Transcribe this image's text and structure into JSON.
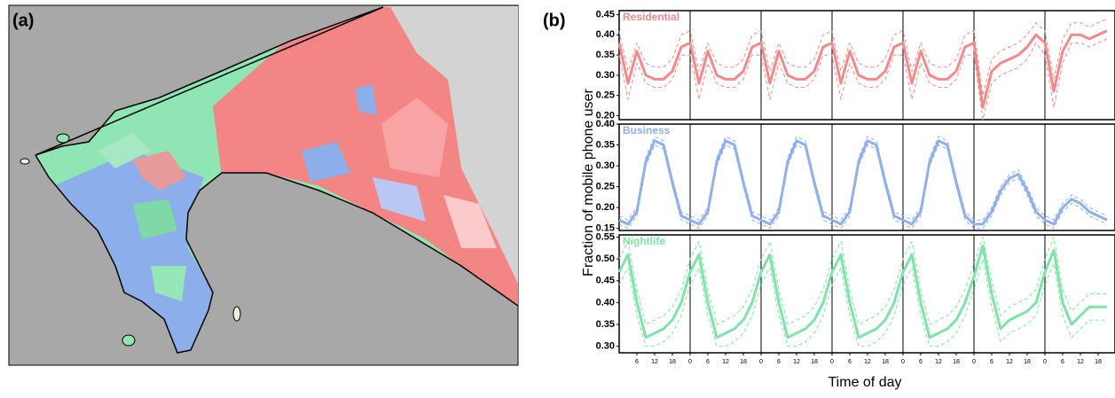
{
  "figure": {
    "panel_labels": [
      "(a)",
      "(b)"
    ],
    "ylabel": "Fraction of mobile phone user",
    "xlabel": "Time of day"
  },
  "chart_data": [
    {
      "type": "line",
      "title": "Residential",
      "xlim": [
        0,
        168
      ],
      "ylim": [
        0.19,
        0.46
      ],
      "yticks": [
        {
          "value": 0.2,
          "label": "0.20"
        },
        0.25,
        {
          "value": 0.3,
          "label": "0.30"
        },
        0.35,
        {
          "value": 0.4,
          "label": "0.40"
        },
        0.45
      ],
      "x": [
        0,
        3,
        6,
        9,
        12,
        15,
        18,
        21,
        24,
        27,
        30,
        33,
        36,
        39,
        42,
        45,
        48,
        51,
        54,
        57,
        60,
        63,
        66,
        69,
        72,
        75,
        78,
        81,
        84,
        87,
        90,
        93,
        96,
        99,
        102,
        105,
        108,
        111,
        114,
        117,
        120,
        123,
        126,
        129,
        132,
        135,
        138,
        141,
        144,
        147,
        150,
        153,
        156,
        159,
        162,
        165
      ],
      "series": [
        {
          "name": "Residential",
          "color": "#f28a8a",
          "values": [
            0.38,
            0.28,
            0.36,
            0.3,
            0.29,
            0.29,
            0.31,
            0.37,
            0.38,
            0.28,
            0.36,
            0.3,
            0.29,
            0.29,
            0.31,
            0.37,
            0.38,
            0.28,
            0.36,
            0.3,
            0.29,
            0.29,
            0.31,
            0.37,
            0.38,
            0.28,
            0.36,
            0.3,
            0.29,
            0.29,
            0.31,
            0.37,
            0.38,
            0.28,
            0.36,
            0.3,
            0.29,
            0.29,
            0.31,
            0.37,
            0.38,
            0.22,
            0.31,
            0.33,
            0.34,
            0.35,
            0.37,
            0.4,
            0.38,
            0.26,
            0.36,
            0.4,
            0.4,
            0.39,
            0.4,
            0.41
          ],
          "lower": [
            0.35,
            0.24,
            0.33,
            0.28,
            0.27,
            0.27,
            0.29,
            0.35,
            0.35,
            0.24,
            0.33,
            0.28,
            0.27,
            0.27,
            0.29,
            0.35,
            0.35,
            0.24,
            0.33,
            0.28,
            0.27,
            0.27,
            0.29,
            0.35,
            0.35,
            0.24,
            0.33,
            0.28,
            0.27,
            0.27,
            0.29,
            0.35,
            0.35,
            0.24,
            0.33,
            0.28,
            0.27,
            0.27,
            0.29,
            0.35,
            0.35,
            0.19,
            0.28,
            0.3,
            0.31,
            0.32,
            0.34,
            0.38,
            0.35,
            0.22,
            0.33,
            0.38,
            0.38,
            0.37,
            0.38,
            0.39
          ],
          "upper": [
            0.41,
            0.31,
            0.38,
            0.33,
            0.32,
            0.32,
            0.34,
            0.4,
            0.41,
            0.31,
            0.38,
            0.33,
            0.32,
            0.32,
            0.34,
            0.4,
            0.41,
            0.31,
            0.38,
            0.33,
            0.32,
            0.32,
            0.34,
            0.4,
            0.41,
            0.31,
            0.38,
            0.33,
            0.32,
            0.32,
            0.34,
            0.4,
            0.41,
            0.31,
            0.38,
            0.33,
            0.32,
            0.32,
            0.34,
            0.4,
            0.41,
            0.25,
            0.34,
            0.36,
            0.37,
            0.38,
            0.4,
            0.43,
            0.41,
            0.29,
            0.39,
            0.43,
            0.43,
            0.42,
            0.43,
            0.44
          ]
        }
      ]
    },
    {
      "type": "line",
      "title": "Business",
      "xlim": [
        0,
        168
      ],
      "ylim": [
        0.145,
        0.4
      ],
      "yticks": [
        0.15,
        {
          "value": 0.2,
          "label": "0.20"
        },
        0.25,
        {
          "value": 0.3,
          "label": "0.30"
        },
        0.35,
        {
          "value": 0.4,
          "label": "0.40"
        }
      ],
      "x": [
        0,
        3,
        6,
        9,
        12,
        15,
        18,
        21,
        24,
        27,
        30,
        33,
        36,
        39,
        42,
        45,
        48,
        51,
        54,
        57,
        60,
        63,
        66,
        69,
        72,
        75,
        78,
        81,
        84,
        87,
        90,
        93,
        96,
        99,
        102,
        105,
        108,
        111,
        114,
        117,
        120,
        123,
        126,
        129,
        132,
        135,
        138,
        141,
        144,
        147,
        150,
        153,
        156,
        159,
        162,
        165
      ],
      "series": [
        {
          "name": "Business",
          "color": "#8fb0ea",
          "values": [
            0.17,
            0.16,
            0.19,
            0.31,
            0.36,
            0.35,
            0.26,
            0.18,
            0.17,
            0.16,
            0.19,
            0.31,
            0.36,
            0.35,
            0.26,
            0.18,
            0.17,
            0.16,
            0.19,
            0.31,
            0.36,
            0.35,
            0.26,
            0.18,
            0.17,
            0.16,
            0.19,
            0.31,
            0.36,
            0.35,
            0.26,
            0.18,
            0.17,
            0.16,
            0.19,
            0.31,
            0.36,
            0.35,
            0.26,
            0.18,
            0.16,
            0.16,
            0.19,
            0.24,
            0.27,
            0.28,
            0.24,
            0.19,
            0.17,
            0.16,
            0.2,
            0.22,
            0.21,
            0.19,
            0.18,
            0.17
          ],
          "lower": [
            0.16,
            0.15,
            0.18,
            0.3,
            0.35,
            0.34,
            0.25,
            0.17,
            0.16,
            0.15,
            0.18,
            0.3,
            0.35,
            0.34,
            0.25,
            0.17,
            0.16,
            0.15,
            0.18,
            0.3,
            0.35,
            0.34,
            0.25,
            0.17,
            0.16,
            0.15,
            0.18,
            0.3,
            0.35,
            0.34,
            0.25,
            0.17,
            0.16,
            0.15,
            0.18,
            0.3,
            0.35,
            0.34,
            0.25,
            0.17,
            0.15,
            0.15,
            0.18,
            0.23,
            0.26,
            0.27,
            0.23,
            0.18,
            0.16,
            0.15,
            0.19,
            0.21,
            0.2,
            0.18,
            0.17,
            0.16
          ],
          "upper": [
            0.18,
            0.17,
            0.2,
            0.32,
            0.37,
            0.36,
            0.27,
            0.19,
            0.18,
            0.17,
            0.2,
            0.32,
            0.37,
            0.36,
            0.27,
            0.19,
            0.18,
            0.17,
            0.2,
            0.32,
            0.37,
            0.36,
            0.27,
            0.19,
            0.18,
            0.17,
            0.2,
            0.32,
            0.37,
            0.36,
            0.27,
            0.19,
            0.18,
            0.17,
            0.2,
            0.32,
            0.37,
            0.36,
            0.27,
            0.19,
            0.17,
            0.17,
            0.2,
            0.25,
            0.28,
            0.29,
            0.25,
            0.2,
            0.18,
            0.17,
            0.21,
            0.23,
            0.22,
            0.2,
            0.19,
            0.18
          ]
        }
      ]
    },
    {
      "type": "line",
      "title": "Nightlife",
      "xlim": [
        0,
        168
      ],
      "ylim": [
        0.285,
        0.555
      ],
      "yticks": [
        {
          "value": 0.3,
          "label": "0.30"
        },
        0.35,
        {
          "value": 0.4,
          "label": "0.40"
        },
        0.45,
        {
          "value": 0.5,
          "label": "0.50"
        },
        0.55
      ],
      "xticks": [
        6,
        12,
        18,
        {
          "value": 24,
          "label": "0"
        },
        {
          "value": 30,
          "label": "6"
        },
        {
          "value": 36,
          "label": "12"
        },
        {
          "value": 42,
          "label": "18"
        },
        {
          "value": 48,
          "label": "0"
        },
        {
          "value": 54,
          "label": "6"
        },
        {
          "value": 60,
          "label": "12"
        },
        {
          "value": 66,
          "label": "18"
        },
        {
          "value": 72,
          "label": "0"
        },
        {
          "value": 78,
          "label": "6"
        },
        {
          "value": 84,
          "label": "12"
        },
        {
          "value": 90,
          "label": "18"
        },
        {
          "value": 96,
          "label": "0"
        },
        {
          "value": 102,
          "label": "6"
        },
        {
          "value": 108,
          "label": "12"
        },
        {
          "value": 114,
          "label": "18"
        },
        {
          "value": 120,
          "label": "0"
        },
        {
          "value": 126,
          "label": "6"
        },
        {
          "value": 132,
          "label": "12"
        },
        {
          "value": 138,
          "label": "18"
        },
        {
          "value": 144,
          "label": "0"
        },
        {
          "value": 150,
          "label": "6"
        },
        {
          "value": 156,
          "label": "12"
        },
        {
          "value": 162,
          "label": "18"
        }
      ],
      "x": [
        0,
        3,
        6,
        9,
        12,
        15,
        18,
        21,
        24,
        27,
        30,
        33,
        36,
        39,
        42,
        45,
        48,
        51,
        54,
        57,
        60,
        63,
        66,
        69,
        72,
        75,
        78,
        81,
        84,
        87,
        90,
        93,
        96,
        99,
        102,
        105,
        108,
        111,
        114,
        117,
        120,
        123,
        126,
        129,
        132,
        135,
        138,
        141,
        144,
        147,
        150,
        153,
        156,
        159,
        162,
        165
      ],
      "series": [
        {
          "name": "Nightlife",
          "color": "#7ee3a6",
          "values": [
            0.47,
            0.51,
            0.4,
            0.32,
            0.33,
            0.34,
            0.36,
            0.4,
            0.47,
            0.51,
            0.4,
            0.32,
            0.33,
            0.34,
            0.36,
            0.4,
            0.47,
            0.51,
            0.4,
            0.32,
            0.33,
            0.34,
            0.36,
            0.4,
            0.47,
            0.51,
            0.4,
            0.32,
            0.33,
            0.34,
            0.36,
            0.4,
            0.47,
            0.51,
            0.4,
            0.32,
            0.33,
            0.34,
            0.36,
            0.4,
            0.46,
            0.53,
            0.42,
            0.34,
            0.36,
            0.37,
            0.38,
            0.4,
            0.47,
            0.52,
            0.4,
            0.35,
            0.37,
            0.39,
            0.39,
            0.39
          ],
          "lower": [
            0.44,
            0.48,
            0.37,
            0.3,
            0.3,
            0.31,
            0.33,
            0.37,
            0.44,
            0.48,
            0.37,
            0.3,
            0.3,
            0.31,
            0.33,
            0.37,
            0.44,
            0.48,
            0.37,
            0.3,
            0.3,
            0.31,
            0.33,
            0.37,
            0.44,
            0.48,
            0.37,
            0.3,
            0.3,
            0.31,
            0.33,
            0.37,
            0.44,
            0.48,
            0.37,
            0.3,
            0.3,
            0.31,
            0.33,
            0.37,
            0.43,
            0.5,
            0.39,
            0.31,
            0.33,
            0.34,
            0.35,
            0.37,
            0.44,
            0.49,
            0.37,
            0.32,
            0.34,
            0.36,
            0.36,
            0.36
          ],
          "upper": [
            0.5,
            0.54,
            0.43,
            0.35,
            0.36,
            0.37,
            0.39,
            0.43,
            0.5,
            0.54,
            0.43,
            0.35,
            0.36,
            0.37,
            0.39,
            0.43,
            0.5,
            0.54,
            0.43,
            0.35,
            0.36,
            0.37,
            0.39,
            0.43,
            0.5,
            0.54,
            0.43,
            0.35,
            0.36,
            0.37,
            0.39,
            0.43,
            0.5,
            0.54,
            0.43,
            0.35,
            0.36,
            0.37,
            0.39,
            0.43,
            0.49,
            0.55,
            0.45,
            0.37,
            0.39,
            0.4,
            0.41,
            0.43,
            0.5,
            0.55,
            0.43,
            0.38,
            0.4,
            0.42,
            0.42,
            0.42
          ]
        }
      ]
    }
  ]
}
